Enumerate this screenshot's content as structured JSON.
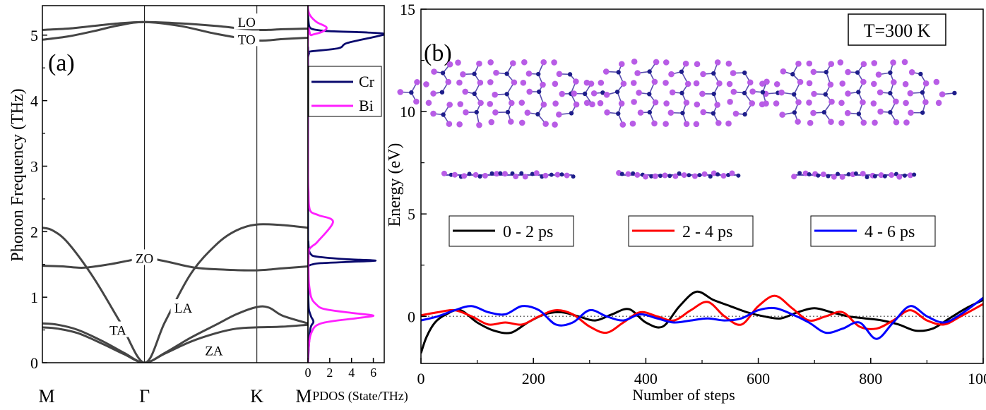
{
  "colors": {
    "band": "#454545",
    "cr": "#0a0a6e",
    "bi": "#ff1fff",
    "md_0_2": "#000000",
    "md_2_4": "#ff0000",
    "md_4_6": "#0000ff",
    "atom_cr": "#1d1d8a",
    "atom_bi": "#b85ce6",
    "bond": "#5a4fb0",
    "zero_line": "#777777"
  },
  "chart_data": [
    {
      "type": "line",
      "panel_label": "(a)",
      "xlabel": "",
      "ylabel": "Phonon Frequency (THz)",
      "ylim": [
        0,
        5.45
      ],
      "yticks": [
        "0",
        "1",
        "2",
        "3",
        "4",
        "5"
      ],
      "x_path": [
        "M",
        "Γ",
        "K",
        "M"
      ],
      "x_path_positions": [
        0,
        1,
        2.1,
        2.6
      ],
      "grid": false,
      "branch_labels": [
        {
          "text": "LO",
          "x": 2.0,
          "y": 5.2
        },
        {
          "text": "TO",
          "x": 2.0,
          "y": 4.94
        },
        {
          "text": "ZO",
          "x": 1.0,
          "y": 1.6
        },
        {
          "text": "LA",
          "x": 1.38,
          "y": 0.84
        },
        {
          "text": "TA",
          "x": 0.74,
          "y": 0.5
        },
        {
          "text": "ZA",
          "x": 1.68,
          "y": 0.19
        }
      ],
      "series": [
        {
          "x": [
            0,
            0.25,
            0.5,
            0.75,
            1.0,
            1.35,
            1.7,
            2.1,
            2.35,
            2.6
          ],
          "values": [
            5.08,
            5.1,
            5.14,
            5.18,
            5.2,
            5.18,
            5.14,
            5.08,
            5.09,
            5.1
          ]
        },
        {
          "x": [
            0,
            0.25,
            0.5,
            0.75,
            1.0,
            1.35,
            1.7,
            2.1,
            2.35,
            2.6
          ],
          "values": [
            4.93,
            4.98,
            5.06,
            5.15,
            5.2,
            5.14,
            5.02,
            4.92,
            4.94,
            4.96
          ]
        },
        {
          "x": [
            0,
            0.1,
            0.25,
            0.5,
            0.75,
            1.0,
            1.2,
            1.45,
            1.7,
            1.9,
            2.1,
            2.35,
            2.6
          ],
          "values": [
            2.06,
            2.02,
            1.83,
            1.3,
            0.65,
            0.0,
            0.62,
            1.35,
            1.8,
            2.02,
            2.11,
            2.1,
            2.06
          ]
        },
        {
          "x": [
            0,
            0.2,
            0.4,
            0.65,
            0.85,
            1.0,
            1.2,
            1.5,
            1.8,
            2.1,
            2.35,
            2.6
          ],
          "values": [
            1.48,
            1.47,
            1.45,
            1.5,
            1.56,
            1.6,
            1.55,
            1.45,
            1.42,
            1.41,
            1.44,
            1.47
          ]
        },
        {
          "x": [
            0,
            0.15,
            0.35,
            0.6,
            0.8,
            1.0,
            1.2,
            1.45,
            1.7,
            1.9,
            2.1,
            2.22,
            2.35,
            2.6
          ],
          "values": [
            0.6,
            0.58,
            0.5,
            0.32,
            0.15,
            0.0,
            0.15,
            0.38,
            0.58,
            0.74,
            0.85,
            0.84,
            0.72,
            0.6
          ]
        },
        {
          "x": [
            0,
            0.15,
            0.35,
            0.6,
            0.8,
            1.0,
            1.2,
            1.45,
            1.7,
            1.9,
            2.1,
            2.35,
            2.6
          ],
          "values": [
            0.54,
            0.52,
            0.45,
            0.28,
            0.13,
            0.0,
            0.14,
            0.32,
            0.45,
            0.52,
            0.54,
            0.55,
            0.58
          ]
        }
      ]
    },
    {
      "type": "line",
      "xlabel": "PDOS (State/THz)",
      "ylabel": "",
      "xlim": [
        0,
        7
      ],
      "xticks": [
        "0",
        "2",
        "4",
        "6"
      ],
      "ylim": [
        0,
        5.45
      ],
      "legend_position": "top-right",
      "series": [
        {
          "name": "Cr",
          "x": [
            0,
            0.2,
            0.5,
            0.3,
            0.1,
            0.05,
            0.02,
            0.0,
            0.02,
            0.08,
            0.4,
            1.2,
            4.0,
            6.2,
            3.5,
            0.8,
            0.25,
            0.1,
            0.03,
            0.0,
            0.0,
            0.03,
            0.1,
            0.2,
            2.8,
            3.6,
            6.3,
            7.0,
            5.5,
            2.0,
            0.8,
            0.3,
            0.1,
            0.0
          ],
          "y": [
            0.0,
            0.5,
            0.62,
            0.7,
            0.8,
            0.9,
            1.1,
            1.3,
            1.45,
            1.48,
            1.5,
            1.52,
            1.54,
            1.56,
            1.58,
            1.62,
            1.66,
            1.72,
            1.85,
            2.0,
            4.6,
            4.68,
            4.72,
            4.75,
            4.8,
            4.88,
            4.98,
            5.02,
            5.04,
            5.06,
            5.08,
            5.1,
            5.15,
            5.3
          ]
        },
        {
          "name": "Bi",
          "x": [
            0,
            0.05,
            0.3,
            1.2,
            4.5,
            6.0,
            4.0,
            1.5,
            0.7,
            0.3,
            0.1,
            0.05,
            0.05,
            0.1,
            0.4,
            0.9,
            2.3,
            1.0,
            0.3,
            0.1,
            0.05,
            0.0,
            0.0,
            0.3,
            1.3,
            1.7,
            0.8,
            0.2,
            0.0,
            0.0
          ],
          "y": [
            0.0,
            0.2,
            0.45,
            0.6,
            0.68,
            0.72,
            0.76,
            0.82,
            0.9,
            1.0,
            1.2,
            1.4,
            1.6,
            1.72,
            1.78,
            1.85,
            2.15,
            2.25,
            2.3,
            2.4,
            2.6,
            3.0,
            4.95,
            5.0,
            5.05,
            5.12,
            5.2,
            5.3,
            5.4,
            5.45
          ]
        }
      ]
    },
    {
      "type": "line",
      "panel_label": "(b)",
      "annotation": "T=300 K",
      "xlabel": "Number of steps",
      "ylabel": "Energy (eV)",
      "xlim": [
        0,
        1000
      ],
      "ylim": [
        -2.3,
        15
      ],
      "xticks": [
        "0",
        "200",
        "400",
        "600",
        "800",
        "1000"
      ],
      "yticks": [
        "0",
        "5",
        "10",
        "15"
      ],
      "reference_line": 0,
      "legend_position": "center",
      "series": [
        {
          "name": "0 - 2 ps",
          "x": [
            0,
            10,
            25,
            45,
            70,
            100,
            130,
            160,
            190,
            220,
            250,
            280,
            310,
            340,
            370,
            400,
            430,
            460,
            490,
            520,
            550,
            580,
            610,
            640,
            670,
            700,
            730,
            760,
            790,
            820,
            850,
            880,
            910,
            940,
            970,
            1000
          ],
          "values": [
            -1.8,
            -1.0,
            -0.3,
            0.1,
            0.3,
            -0.3,
            -0.7,
            -0.8,
            -0.3,
            0.1,
            0.2,
            0.0,
            -0.2,
            0.1,
            0.35,
            -0.3,
            -0.5,
            0.5,
            1.2,
            0.8,
            0.5,
            0.2,
            0.0,
            -0.1,
            0.2,
            0.4,
            0.2,
            0.0,
            -0.1,
            -0.2,
            -0.4,
            -0.7,
            -0.6,
            -0.1,
            0.4,
            0.8
          ]
        },
        {
          "name": "2 - 4 ps",
          "x": [
            0,
            30,
            60,
            90,
            120,
            150,
            180,
            210,
            240,
            270,
            300,
            330,
            360,
            390,
            420,
            450,
            480,
            510,
            540,
            570,
            600,
            630,
            660,
            690,
            720,
            750,
            780,
            810,
            840,
            870,
            900,
            930,
            960,
            1000
          ],
          "values": [
            0.05,
            0.2,
            0.3,
            0.0,
            -0.4,
            -0.3,
            -0.4,
            0.0,
            0.3,
            0.1,
            -0.5,
            -0.8,
            -0.3,
            0.2,
            0.0,
            -0.2,
            0.3,
            0.7,
            0.0,
            -0.4,
            0.5,
            1.0,
            0.4,
            -0.2,
            0.0,
            0.2,
            -0.5,
            -0.6,
            -0.2,
            0.3,
            -0.2,
            -0.4,
            0.0,
            0.6
          ]
        },
        {
          "name": "4 - 6 ps",
          "x": [
            0,
            30,
            60,
            90,
            120,
            150,
            180,
            210,
            240,
            270,
            300,
            330,
            360,
            390,
            420,
            450,
            480,
            510,
            540,
            570,
            600,
            630,
            660,
            690,
            720,
            750,
            780,
            810,
            840,
            870,
            900,
            930,
            960,
            1000
          ],
          "values": [
            -0.2,
            0.0,
            0.3,
            0.5,
            0.2,
            0.1,
            0.5,
            0.3,
            -0.4,
            -0.3,
            0.3,
            0.0,
            -0.2,
            0.1,
            -0.1,
            -0.3,
            -0.2,
            -0.1,
            -0.2,
            -0.1,
            0.3,
            0.4,
            0.1,
            -0.3,
            -0.8,
            -0.6,
            -0.3,
            -1.1,
            -0.3,
            0.5,
            0.0,
            -0.3,
            0.1,
            0.9
          ]
        }
      ]
    }
  ]
}
